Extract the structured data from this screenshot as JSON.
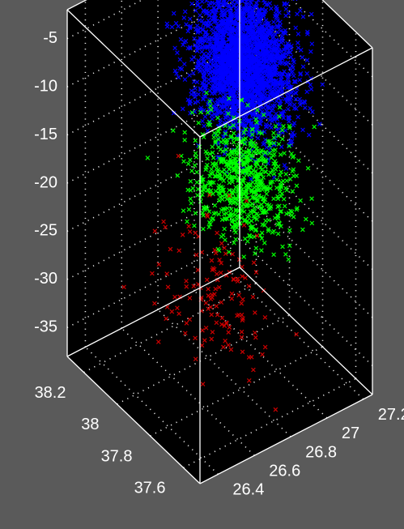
{
  "chart_data": {
    "type": "scatter",
    "projection": "3d",
    "background": "#5a5a5a",
    "axes_background": "#000000",
    "grid": true,
    "marker": "x",
    "xlim": [
      26.3,
      27.25
    ],
    "ylim": [
      37.5,
      38.3
    ],
    "zlim": [
      -38,
      -2
    ],
    "x_ticks": [
      "26.4",
      "26.6",
      "26.8",
      "27",
      "27.2"
    ],
    "y_ticks": [
      "37.6",
      "37.8",
      "38",
      "38.2"
    ],
    "z_ticks": [
      "-5",
      "-10",
      "-15",
      "-20",
      "-25",
      "-30",
      "-35"
    ],
    "series": [
      {
        "color": "#0000ff",
        "count": 2600,
        "center": {
          "x": 26.95,
          "y": 37.95,
          "z": -8
        },
        "spread": {
          "x": 0.1,
          "y": 0.1,
          "z": 3.2
        },
        "points": [
          {
            "x": 26.95,
            "y": 37.95,
            "z": -8
          },
          {
            "x": 27.05,
            "y": 38.05,
            "z": -5
          },
          {
            "x": 26.85,
            "y": 37.85,
            "z": -11
          },
          {
            "x": 27.1,
            "y": 38.0,
            "z": -7
          }
        ]
      },
      {
        "color": "#00ff00",
        "count": 700,
        "center": {
          "x": 26.9,
          "y": 37.9,
          "z": -19
        },
        "spread": {
          "x": 0.1,
          "y": 0.1,
          "z": 2.6
        },
        "points": [
          {
            "x": 26.9,
            "y": 37.9,
            "z": -19
          },
          {
            "x": 26.8,
            "y": 37.85,
            "z": -22
          },
          {
            "x": 27.0,
            "y": 37.95,
            "z": -16
          }
        ]
      },
      {
        "color": "#cc0000",
        "count": 140,
        "center": {
          "x": 26.7,
          "y": 37.85,
          "z": -28
        },
        "spread": {
          "x": 0.12,
          "y": 0.12,
          "z": 3.5
        },
        "points": [
          {
            "x": 26.7,
            "y": 37.85,
            "z": -28
          },
          {
            "x": 26.6,
            "y": 37.8,
            "z": -31
          },
          {
            "x": 26.8,
            "y": 37.9,
            "z": -25
          }
        ]
      }
    ]
  }
}
